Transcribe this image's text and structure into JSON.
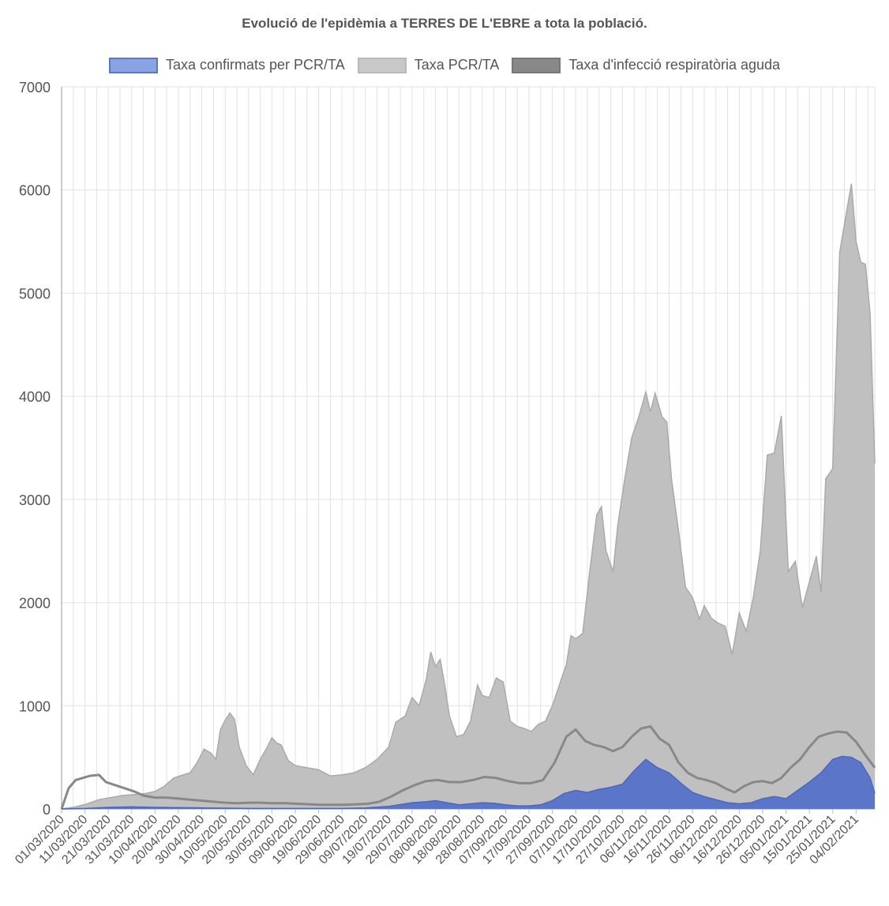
{
  "chart_data": {
    "type": "area",
    "title": "Evolució de l'epidèmia a TERRES DE L'EBRE a tota la població.",
    "xlabel": "",
    "ylabel": "",
    "ylim": [
      0,
      7000
    ],
    "yticks": [
      0,
      1000,
      2000,
      3000,
      4000,
      5000,
      6000,
      7000
    ],
    "grid": true,
    "legend_position": "top",
    "x_start": "01/03/2020",
    "x_end": "12/02/2021",
    "x_tick_labels": [
      "01/03/2020",
      "11/03/2020",
      "21/03/2020",
      "31/03/2020",
      "10/04/2020",
      "20/04/2020",
      "30/04/2020",
      "10/05/2020",
      "20/05/2020",
      "30/05/2020",
      "09/06/2020",
      "19/06/2020",
      "29/06/2020",
      "09/07/2020",
      "19/07/2020",
      "29/07/2020",
      "08/08/2020",
      "18/08/2020",
      "28/08/2020",
      "07/09/2020",
      "17/09/2020",
      "27/09/2020",
      "07/10/2020",
      "17/10/2020",
      "27/10/2020",
      "06/11/2020",
      "16/11/2020",
      "26/11/2020",
      "06/12/2020",
      "16/12/2020",
      "26/12/2020",
      "05/01/2021",
      "15/01/2021",
      "25/01/2021",
      "04/02/2021"
    ],
    "series": [
      {
        "name": "Taxa PCR/TA",
        "kind": "area",
        "color": "#c0c0c0",
        "points": [
          [
            "01/03/2020",
            0
          ],
          [
            "07/03/2020",
            20
          ],
          [
            "12/03/2020",
            50
          ],
          [
            "17/03/2020",
            90
          ],
          [
            "22/03/2020",
            110
          ],
          [
            "27/03/2020",
            130
          ],
          [
            "01/04/2020",
            140
          ],
          [
            "06/04/2020",
            150
          ],
          [
            "10/04/2020",
            170
          ],
          [
            "14/04/2020",
            220
          ],
          [
            "18/04/2020",
            300
          ],
          [
            "22/04/2020",
            330
          ],
          [
            "25/04/2020",
            350
          ],
          [
            "28/04/2020",
            450
          ],
          [
            "01/05/2020",
            580
          ],
          [
            "04/05/2020",
            540
          ],
          [
            "06/05/2020",
            480
          ],
          [
            "08/05/2020",
            770
          ],
          [
            "10/05/2020",
            860
          ],
          [
            "12/05/2020",
            930
          ],
          [
            "14/05/2020",
            870
          ],
          [
            "16/05/2020",
            600
          ],
          [
            "19/05/2020",
            420
          ],
          [
            "22/05/2020",
            330
          ],
          [
            "25/05/2020",
            480
          ],
          [
            "28/05/2020",
            600
          ],
          [
            "30/05/2020",
            690
          ],
          [
            "01/06/2020",
            640
          ],
          [
            "03/06/2020",
            620
          ],
          [
            "06/06/2020",
            470
          ],
          [
            "09/06/2020",
            420
          ],
          [
            "14/06/2020",
            400
          ],
          [
            "19/06/2020",
            380
          ],
          [
            "24/06/2020",
            320
          ],
          [
            "29/06/2020",
            330
          ],
          [
            "04/07/2020",
            350
          ],
          [
            "09/07/2020",
            400
          ],
          [
            "14/07/2020",
            480
          ],
          [
            "19/07/2020",
            600
          ],
          [
            "22/07/2020",
            840
          ],
          [
            "26/07/2020",
            900
          ],
          [
            "29/07/2020",
            1080
          ],
          [
            "01/08/2020",
            1000
          ],
          [
            "04/08/2020",
            1250
          ],
          [
            "06/08/2020",
            1520
          ],
          [
            "08/08/2020",
            1380
          ],
          [
            "10/08/2020",
            1450
          ],
          [
            "12/08/2020",
            1200
          ],
          [
            "14/08/2020",
            900
          ],
          [
            "17/08/2020",
            700
          ],
          [
            "20/08/2020",
            720
          ],
          [
            "23/08/2020",
            850
          ],
          [
            "26/08/2020",
            1200
          ],
          [
            "28/08/2020",
            1100
          ],
          [
            "31/08/2020",
            1080
          ],
          [
            "03/09/2020",
            1270
          ],
          [
            "06/09/2020",
            1230
          ],
          [
            "09/09/2020",
            850
          ],
          [
            "12/09/2020",
            800
          ],
          [
            "15/09/2020",
            780
          ],
          [
            "18/09/2020",
            750
          ],
          [
            "21/09/2020",
            820
          ],
          [
            "24/09/2020",
            850
          ],
          [
            "27/09/2020",
            1000
          ],
          [
            "30/09/2020",
            1200
          ],
          [
            "03/10/2020",
            1400
          ],
          [
            "05/10/2020",
            1680
          ],
          [
            "07/10/2020",
            1650
          ],
          [
            "10/10/2020",
            1700
          ],
          [
            "13/10/2020",
            2300
          ],
          [
            "16/10/2020",
            2850
          ],
          [
            "18/10/2020",
            2930
          ],
          [
            "20/10/2020",
            2500
          ],
          [
            "23/10/2020",
            2300
          ],
          [
            "25/10/2020",
            2750
          ],
          [
            "28/10/2020",
            3200
          ],
          [
            "31/10/2020",
            3600
          ],
          [
            "03/11/2020",
            3800
          ],
          [
            "06/11/2020",
            4040
          ],
          [
            "08/11/2020",
            3850
          ],
          [
            "10/11/2020",
            4030
          ],
          [
            "13/11/2020",
            3800
          ],
          [
            "15/11/2020",
            3750
          ],
          [
            "17/11/2020",
            3200
          ],
          [
            "20/11/2020",
            2700
          ],
          [
            "23/11/2020",
            2150
          ],
          [
            "26/11/2020",
            2050
          ],
          [
            "29/11/2020",
            1840
          ],
          [
            "01/12/2020",
            1970
          ],
          [
            "04/12/2020",
            1850
          ],
          [
            "07/12/2020",
            1800
          ],
          [
            "10/12/2020",
            1770
          ],
          [
            "13/12/2020",
            1500
          ],
          [
            "16/12/2020",
            1900
          ],
          [
            "19/12/2020",
            1720
          ],
          [
            "22/12/2020",
            2050
          ],
          [
            "25/12/2020",
            2500
          ],
          [
            "28/12/2020",
            3430
          ],
          [
            "31/12/2020",
            3450
          ],
          [
            "03/01/2021",
            3810
          ],
          [
            "06/01/2021",
            2300
          ],
          [
            "09/01/2021",
            2400
          ],
          [
            "12/01/2021",
            1950
          ],
          [
            "15/01/2021",
            2200
          ],
          [
            "18/01/2021",
            2450
          ],
          [
            "20/01/2021",
            2100
          ],
          [
            "22/01/2021",
            3200
          ],
          [
            "25/01/2021",
            3300
          ],
          [
            "28/01/2021",
            5400
          ],
          [
            "31/01/2021",
            5800
          ],
          [
            "02/02/2021",
            6060
          ],
          [
            "04/02/2021",
            5500
          ],
          [
            "06/02/2021",
            5300
          ],
          [
            "08/02/2021",
            5280
          ],
          [
            "10/02/2021",
            4800
          ],
          [
            "12/02/2021",
            3350
          ]
        ]
      },
      {
        "name": "Taxa d'infecció respiratòria aguda",
        "kind": "line",
        "color": "#888888",
        "points": [
          [
            "01/03/2020",
            0
          ],
          [
            "04/03/2020",
            200
          ],
          [
            "07/03/2020",
            280
          ],
          [
            "10/03/2020",
            300
          ],
          [
            "13/03/2020",
            320
          ],
          [
            "17/03/2020",
            330
          ],
          [
            "20/03/2020",
            260
          ],
          [
            "24/03/2020",
            230
          ],
          [
            "28/03/2020",
            200
          ],
          [
            "01/04/2020",
            170
          ],
          [
            "05/04/2020",
            130
          ],
          [
            "10/04/2020",
            110
          ],
          [
            "15/04/2020",
            110
          ],
          [
            "20/04/2020",
            100
          ],
          [
            "25/04/2020",
            90
          ],
          [
            "30/04/2020",
            80
          ],
          [
            "05/05/2020",
            70
          ],
          [
            "10/05/2020",
            60
          ],
          [
            "15/05/2020",
            55
          ],
          [
            "20/05/2020",
            60
          ],
          [
            "25/05/2020",
            60
          ],
          [
            "30/05/2020",
            55
          ],
          [
            "05/06/2020",
            55
          ],
          [
            "10/06/2020",
            50
          ],
          [
            "15/06/2020",
            45
          ],
          [
            "20/06/2020",
            40
          ],
          [
            "25/06/2020",
            40
          ],
          [
            "30/06/2020",
            40
          ],
          [
            "05/07/2020",
            45
          ],
          [
            "10/07/2020",
            50
          ],
          [
            "15/07/2020",
            70
          ],
          [
            "20/07/2020",
            120
          ],
          [
            "25/07/2020",
            180
          ],
          [
            "30/07/2020",
            230
          ],
          [
            "04/08/2020",
            270
          ],
          [
            "09/08/2020",
            280
          ],
          [
            "14/08/2020",
            260
          ],
          [
            "19/08/2020",
            260
          ],
          [
            "24/08/2020",
            280
          ],
          [
            "29/08/2020",
            310
          ],
          [
            "03/09/2020",
            300
          ],
          [
            "08/09/2020",
            270
          ],
          [
            "13/09/2020",
            250
          ],
          [
            "18/09/2020",
            250
          ],
          [
            "23/09/2020",
            280
          ],
          [
            "28/09/2020",
            450
          ],
          [
            "03/10/2020",
            700
          ],
          [
            "07/10/2020",
            770
          ],
          [
            "11/10/2020",
            660
          ],
          [
            "15/10/2020",
            620
          ],
          [
            "19/10/2020",
            600
          ],
          [
            "23/10/2020",
            560
          ],
          [
            "27/10/2020",
            600
          ],
          [
            "31/10/2020",
            700
          ],
          [
            "04/11/2020",
            780
          ],
          [
            "08/11/2020",
            800
          ],
          [
            "12/11/2020",
            680
          ],
          [
            "16/11/2020",
            620
          ],
          [
            "20/11/2020",
            450
          ],
          [
            "24/11/2020",
            350
          ],
          [
            "28/11/2020",
            300
          ],
          [
            "02/12/2020",
            280
          ],
          [
            "06/12/2020",
            250
          ],
          [
            "10/12/2020",
            200
          ],
          [
            "14/12/2020",
            160
          ],
          [
            "18/12/2020",
            220
          ],
          [
            "22/12/2020",
            260
          ],
          [
            "26/12/2020",
            270
          ],
          [
            "30/12/2020",
            250
          ],
          [
            "03/01/2021",
            300
          ],
          [
            "07/01/2021",
            400
          ],
          [
            "11/01/2021",
            480
          ],
          [
            "15/01/2021",
            600
          ],
          [
            "19/01/2021",
            700
          ],
          [
            "23/01/2021",
            730
          ],
          [
            "27/01/2021",
            750
          ],
          [
            "31/01/2021",
            740
          ],
          [
            "04/02/2021",
            650
          ],
          [
            "08/02/2021",
            520
          ],
          [
            "12/02/2021",
            400
          ]
        ]
      },
      {
        "name": "Taxa confirmats per PCR/TA",
        "kind": "area",
        "color": "#5b76c8",
        "points": [
          [
            "01/03/2020",
            0
          ],
          [
            "11/03/2020",
            5
          ],
          [
            "21/03/2020",
            15
          ],
          [
            "31/03/2020",
            20
          ],
          [
            "10/04/2020",
            15
          ],
          [
            "20/04/2020",
            12
          ],
          [
            "30/04/2020",
            10
          ],
          [
            "10/05/2020",
            8
          ],
          [
            "20/05/2020",
            5
          ],
          [
            "30/05/2020",
            5
          ],
          [
            "09/06/2020",
            5
          ],
          [
            "19/06/2020",
            5
          ],
          [
            "29/06/2020",
            5
          ],
          [
            "09/07/2020",
            10
          ],
          [
            "19/07/2020",
            25
          ],
          [
            "29/07/2020",
            60
          ],
          [
            "04/08/2020",
            70
          ],
          [
            "08/08/2020",
            80
          ],
          [
            "13/08/2020",
            60
          ],
          [
            "18/08/2020",
            40
          ],
          [
            "23/08/2020",
            50
          ],
          [
            "28/08/2020",
            60
          ],
          [
            "02/09/2020",
            55
          ],
          [
            "07/09/2020",
            40
          ],
          [
            "12/09/2020",
            30
          ],
          [
            "17/09/2020",
            30
          ],
          [
            "22/09/2020",
            40
          ],
          [
            "27/09/2020",
            80
          ],
          [
            "02/10/2020",
            150
          ],
          [
            "07/10/2020",
            180
          ],
          [
            "12/10/2020",
            160
          ],
          [
            "17/10/2020",
            190
          ],
          [
            "22/10/2020",
            210
          ],
          [
            "27/10/2020",
            240
          ],
          [
            "01/11/2020",
            370
          ],
          [
            "06/11/2020",
            480
          ],
          [
            "11/11/2020",
            400
          ],
          [
            "16/11/2020",
            350
          ],
          [
            "21/11/2020",
            250
          ],
          [
            "26/11/2020",
            160
          ],
          [
            "01/12/2020",
            120
          ],
          [
            "06/12/2020",
            90
          ],
          [
            "11/12/2020",
            60
          ],
          [
            "16/12/2020",
            50
          ],
          [
            "21/12/2020",
            60
          ],
          [
            "26/12/2020",
            100
          ],
          [
            "31/12/2020",
            120
          ],
          [
            "05/01/2021",
            100
          ],
          [
            "10/01/2021",
            180
          ],
          [
            "15/01/2021",
            260
          ],
          [
            "20/01/2021",
            350
          ],
          [
            "25/01/2021",
            480
          ],
          [
            "29/01/2021",
            510
          ],
          [
            "02/02/2021",
            500
          ],
          [
            "06/02/2021",
            450
          ],
          [
            "10/02/2021",
            300
          ],
          [
            "12/02/2021",
            150
          ]
        ]
      }
    ]
  }
}
